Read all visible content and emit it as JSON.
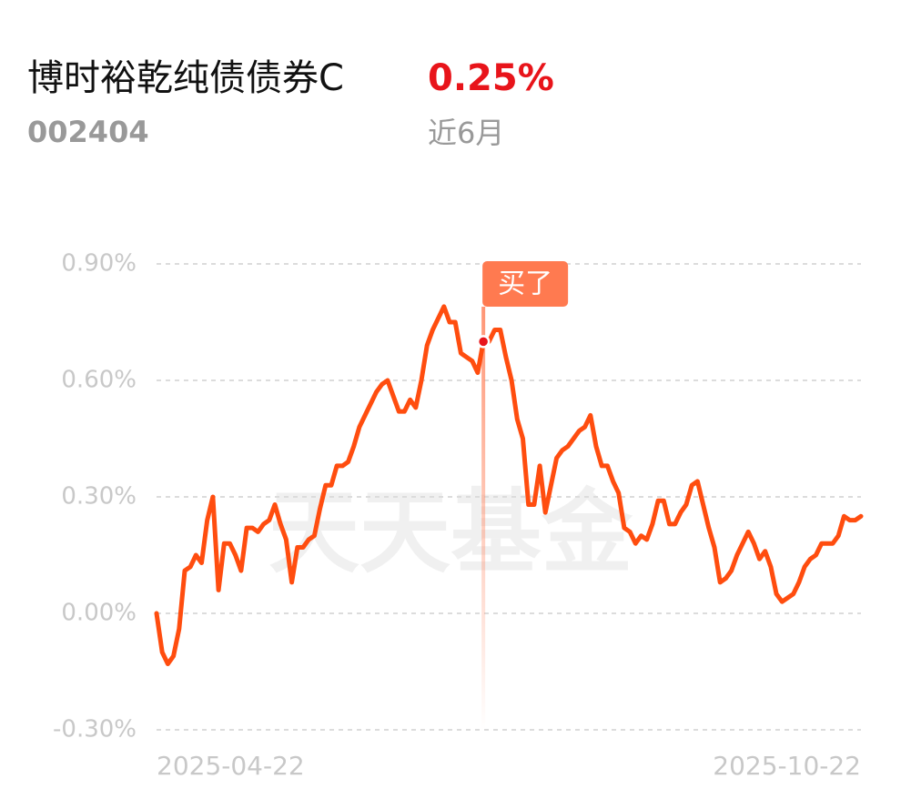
{
  "header": {
    "title": "博时裕乾纯债债券C",
    "return": "0.25%",
    "code": "002404",
    "period": "近6月"
  },
  "watermark": "天天基金",
  "chart_data": {
    "type": "line",
    "categories": [
      "2025-04-22",
      null,
      null,
      null,
      null,
      null,
      null,
      null,
      null,
      null,
      null,
      null,
      null,
      null,
      null,
      null,
      null,
      null,
      null,
      null,
      null,
      null,
      null,
      null,
      null,
      null,
      null,
      null,
      null,
      null,
      null,
      null,
      null,
      null,
      null,
      null,
      null,
      null,
      null,
      null,
      null,
      null,
      null,
      null,
      null,
      null,
      null,
      null,
      null,
      null,
      null,
      null,
      null,
      null,
      null,
      null,
      null,
      null,
      null,
      null,
      null,
      null,
      null,
      null,
      null,
      null,
      null,
      null,
      null,
      null,
      null,
      null,
      null,
      null,
      null,
      null,
      null,
      null,
      null,
      null,
      null,
      null,
      null,
      null,
      null,
      null,
      null,
      null,
      null,
      null,
      null,
      null,
      null,
      null,
      null,
      null,
      null,
      null,
      null,
      null,
      null,
      null,
      null,
      null,
      null,
      null,
      null,
      null,
      null,
      null,
      null,
      null,
      null,
      null,
      null,
      null,
      null,
      null,
      null,
      null,
      null,
      null,
      null,
      null,
      null,
      "2025-10-22"
    ],
    "series": [
      {
        "color": "#ff4d0f",
        "values": [
          0.0,
          -0.1,
          -0.13,
          -0.11,
          -0.04,
          0.11,
          0.12,
          0.15,
          0.13,
          0.24,
          0.3,
          0.06,
          0.18,
          0.18,
          0.15,
          0.11,
          0.22,
          0.22,
          0.21,
          0.23,
          0.24,
          0.28,
          0.23,
          0.19,
          0.08,
          0.17,
          0.17,
          0.19,
          0.2,
          0.27,
          0.33,
          0.33,
          0.38,
          0.38,
          0.39,
          0.43,
          0.48,
          0.51,
          0.54,
          0.57,
          0.59,
          0.6,
          0.56,
          0.52,
          0.52,
          0.55,
          0.53,
          0.6,
          0.69,
          0.73,
          0.76,
          0.79,
          0.75,
          0.75,
          0.67,
          0.66,
          0.65,
          0.62,
          0.7,
          0.7,
          0.73,
          0.73,
          0.66,
          0.6,
          0.5,
          0.45,
          0.28,
          0.28,
          0.38,
          0.26,
          0.33,
          0.4,
          0.42,
          0.43,
          0.45,
          0.47,
          0.48,
          0.51,
          0.43,
          0.38,
          0.38,
          0.34,
          0.31,
          0.22,
          0.21,
          0.18,
          0.2,
          0.19,
          0.23,
          0.29,
          0.29,
          0.23,
          0.23,
          0.26,
          0.28,
          0.33,
          0.34,
          0.28,
          0.22,
          0.17,
          0.08,
          0.09,
          0.11,
          0.15,
          0.18,
          0.21,
          0.18,
          0.14,
          0.16,
          0.12,
          0.05,
          0.03,
          0.04,
          0.05,
          0.08,
          0.12,
          0.14,
          0.15,
          0.18,
          0.18,
          0.18,
          0.2,
          0.25,
          0.24,
          0.24,
          0.25
        ]
      }
    ],
    "ylim": [
      -0.3,
      0.9
    ],
    "yticks": [
      {
        "value": 0.9,
        "label": "0.90%"
      },
      {
        "value": 0.6,
        "label": "0.60%"
      },
      {
        "value": 0.3,
        "label": "0.30%"
      },
      {
        "value": 0,
        "label": "0.00%"
      },
      {
        "value": -0.3,
        "label": "-0.30%"
      }
    ],
    "grid": true,
    "annotation": {
      "text": "买了",
      "index": 58
    }
  }
}
